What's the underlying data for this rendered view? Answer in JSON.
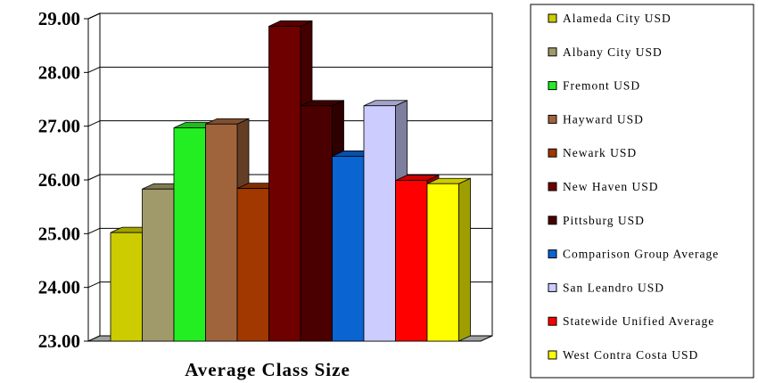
{
  "chart_data": {
    "type": "bar",
    "title": "",
    "xlabel": "Average Class Size",
    "ylabel": "",
    "ylim": [
      23.0,
      29.0
    ],
    "yticks": [
      "23.00",
      "24.00",
      "25.00",
      "26.00",
      "27.00",
      "28.00",
      "29.00"
    ],
    "grid": true,
    "legend_position": "right",
    "series": [
      {
        "name": "Alameda City USD",
        "value": 25.02,
        "color": "#cccc00"
      },
      {
        "name": "Albany City USD",
        "value": 25.83,
        "color": "#a09a6a"
      },
      {
        "name": "Fremont USD",
        "value": 26.97,
        "color": "#22ee22"
      },
      {
        "name": "Hayward USD",
        "value": 27.04,
        "color": "#a0643c"
      },
      {
        "name": "Newark USD",
        "value": 25.84,
        "color": "#a03800"
      },
      {
        "name": "New Haven USD",
        "value": 28.86,
        "color": "#6e0000"
      },
      {
        "name": "Pittsburg USD",
        "value": 27.38,
        "color": "#4a0000"
      },
      {
        "name": "Comparison Group Average",
        "value": 26.44,
        "color": "#0a64d2"
      },
      {
        "name": "San Leandro USD",
        "value": 27.38,
        "color": "#ccccff"
      },
      {
        "name": "Statewide Unified Average",
        "value": 25.99,
        "color": "#ff0000"
      },
      {
        "name": "West Contra Costa USD",
        "value": 25.93,
        "color": "#ffff00"
      }
    ]
  }
}
